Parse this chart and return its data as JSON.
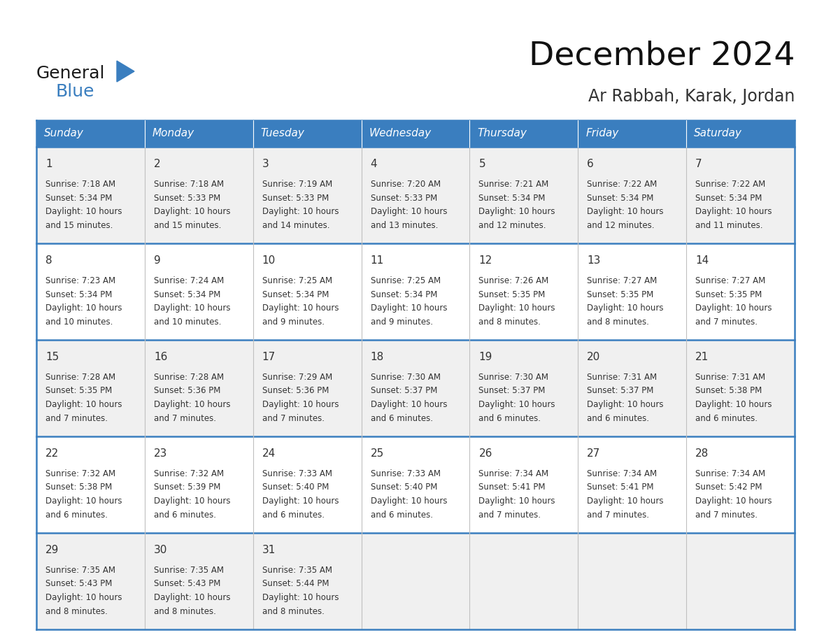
{
  "title": "December 2024",
  "subtitle": "Ar Rabbah, Karak, Jordan",
  "days_of_week": [
    "Sunday",
    "Monday",
    "Tuesday",
    "Wednesday",
    "Thursday",
    "Friday",
    "Saturday"
  ],
  "header_bg": "#3a7ebf",
  "header_text_color": "#FFFFFF",
  "cell_bg_odd": "#f0f0f0",
  "cell_bg_even": "#FFFFFF",
  "row_sep_color": "#3a7ebf",
  "col_sep_color": "#c0c0c0",
  "border_color": "#3a7ebf",
  "text_color": "#333333",
  "day_data": [
    {
      "day": 1,
      "col": 0,
      "row": 0,
      "sunrise": "7:18 AM",
      "sunset": "5:34 PM",
      "and_part": "and 15 minutes."
    },
    {
      "day": 2,
      "col": 1,
      "row": 0,
      "sunrise": "7:18 AM",
      "sunset": "5:33 PM",
      "and_part": "and 15 minutes."
    },
    {
      "day": 3,
      "col": 2,
      "row": 0,
      "sunrise": "7:19 AM",
      "sunset": "5:33 PM",
      "and_part": "and 14 minutes."
    },
    {
      "day": 4,
      "col": 3,
      "row": 0,
      "sunrise": "7:20 AM",
      "sunset": "5:33 PM",
      "and_part": "and 13 minutes."
    },
    {
      "day": 5,
      "col": 4,
      "row": 0,
      "sunrise": "7:21 AM",
      "sunset": "5:34 PM",
      "and_part": "and 12 minutes."
    },
    {
      "day": 6,
      "col": 5,
      "row": 0,
      "sunrise": "7:22 AM",
      "sunset": "5:34 PM",
      "and_part": "and 12 minutes."
    },
    {
      "day": 7,
      "col": 6,
      "row": 0,
      "sunrise": "7:22 AM",
      "sunset": "5:34 PM",
      "and_part": "and 11 minutes."
    },
    {
      "day": 8,
      "col": 0,
      "row": 1,
      "sunrise": "7:23 AM",
      "sunset": "5:34 PM",
      "and_part": "and 10 minutes."
    },
    {
      "day": 9,
      "col": 1,
      "row": 1,
      "sunrise": "7:24 AM",
      "sunset": "5:34 PM",
      "and_part": "and 10 minutes."
    },
    {
      "day": 10,
      "col": 2,
      "row": 1,
      "sunrise": "7:25 AM",
      "sunset": "5:34 PM",
      "and_part": "and 9 minutes."
    },
    {
      "day": 11,
      "col": 3,
      "row": 1,
      "sunrise": "7:25 AM",
      "sunset": "5:34 PM",
      "and_part": "and 9 minutes."
    },
    {
      "day": 12,
      "col": 4,
      "row": 1,
      "sunrise": "7:26 AM",
      "sunset": "5:35 PM",
      "and_part": "and 8 minutes."
    },
    {
      "day": 13,
      "col": 5,
      "row": 1,
      "sunrise": "7:27 AM",
      "sunset": "5:35 PM",
      "and_part": "and 8 minutes."
    },
    {
      "day": 14,
      "col": 6,
      "row": 1,
      "sunrise": "7:27 AM",
      "sunset": "5:35 PM",
      "and_part": "and 7 minutes."
    },
    {
      "day": 15,
      "col": 0,
      "row": 2,
      "sunrise": "7:28 AM",
      "sunset": "5:35 PM",
      "and_part": "and 7 minutes."
    },
    {
      "day": 16,
      "col": 1,
      "row": 2,
      "sunrise": "7:28 AM",
      "sunset": "5:36 PM",
      "and_part": "and 7 minutes."
    },
    {
      "day": 17,
      "col": 2,
      "row": 2,
      "sunrise": "7:29 AM",
      "sunset": "5:36 PM",
      "and_part": "and 7 minutes."
    },
    {
      "day": 18,
      "col": 3,
      "row": 2,
      "sunrise": "7:30 AM",
      "sunset": "5:37 PM",
      "and_part": "and 6 minutes."
    },
    {
      "day": 19,
      "col": 4,
      "row": 2,
      "sunrise": "7:30 AM",
      "sunset": "5:37 PM",
      "and_part": "and 6 minutes."
    },
    {
      "day": 20,
      "col": 5,
      "row": 2,
      "sunrise": "7:31 AM",
      "sunset": "5:37 PM",
      "and_part": "and 6 minutes."
    },
    {
      "day": 21,
      "col": 6,
      "row": 2,
      "sunrise": "7:31 AM",
      "sunset": "5:38 PM",
      "and_part": "and 6 minutes."
    },
    {
      "day": 22,
      "col": 0,
      "row": 3,
      "sunrise": "7:32 AM",
      "sunset": "5:38 PM",
      "and_part": "and 6 minutes."
    },
    {
      "day": 23,
      "col": 1,
      "row": 3,
      "sunrise": "7:32 AM",
      "sunset": "5:39 PM",
      "and_part": "and 6 minutes."
    },
    {
      "day": 24,
      "col": 2,
      "row": 3,
      "sunrise": "7:33 AM",
      "sunset": "5:40 PM",
      "and_part": "and 6 minutes."
    },
    {
      "day": 25,
      "col": 3,
      "row": 3,
      "sunrise": "7:33 AM",
      "sunset": "5:40 PM",
      "and_part": "and 6 minutes."
    },
    {
      "day": 26,
      "col": 4,
      "row": 3,
      "sunrise": "7:34 AM",
      "sunset": "5:41 PM",
      "and_part": "and 7 minutes."
    },
    {
      "day": 27,
      "col": 5,
      "row": 3,
      "sunrise": "7:34 AM",
      "sunset": "5:41 PM",
      "and_part": "and 7 minutes."
    },
    {
      "day": 28,
      "col": 6,
      "row": 3,
      "sunrise": "7:34 AM",
      "sunset": "5:42 PM",
      "and_part": "and 7 minutes."
    },
    {
      "day": 29,
      "col": 0,
      "row": 4,
      "sunrise": "7:35 AM",
      "sunset": "5:43 PM",
      "and_part": "and 8 minutes."
    },
    {
      "day": 30,
      "col": 1,
      "row": 4,
      "sunrise": "7:35 AM",
      "sunset": "5:43 PM",
      "and_part": "and 8 minutes."
    },
    {
      "day": 31,
      "col": 2,
      "row": 4,
      "sunrise": "7:35 AM",
      "sunset": "5:44 PM",
      "and_part": "and 8 minutes."
    }
  ],
  "num_rows": 5,
  "num_cols": 7,
  "logo_color1": "#1a1a1a",
  "logo_color2": "#3a7ebf",
  "title_fontsize": 34,
  "subtitle_fontsize": 17,
  "header_fontsize": 11,
  "day_num_fontsize": 11,
  "cell_fontsize": 8.5
}
